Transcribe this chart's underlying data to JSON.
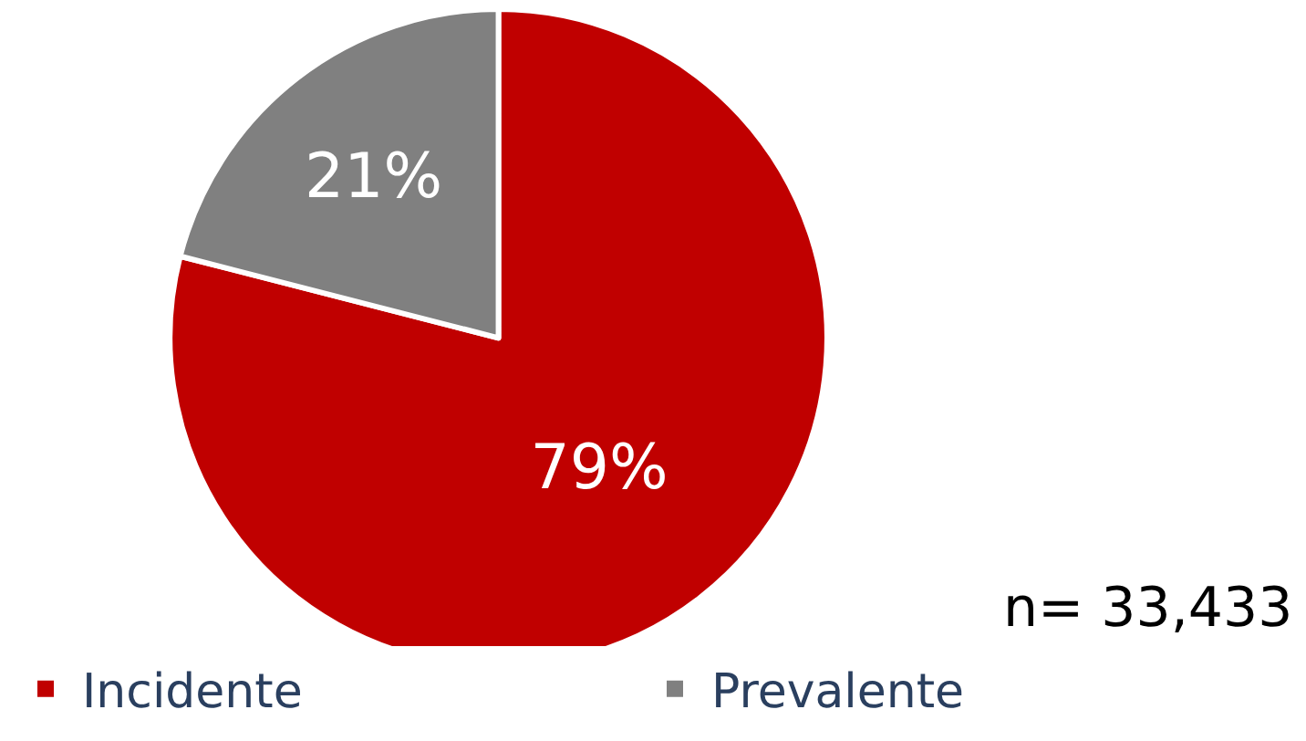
{
  "chart_data": {
    "type": "pie",
    "categories": [
      "Incidente",
      "Prevalente"
    ],
    "values": [
      79,
      21
    ],
    "colors": [
      "#c00000",
      "#808080"
    ],
    "value_labels": [
      "79%",
      "21%"
    ],
    "annotations": [
      "n= 33,433"
    ],
    "legend": "bottom"
  }
}
